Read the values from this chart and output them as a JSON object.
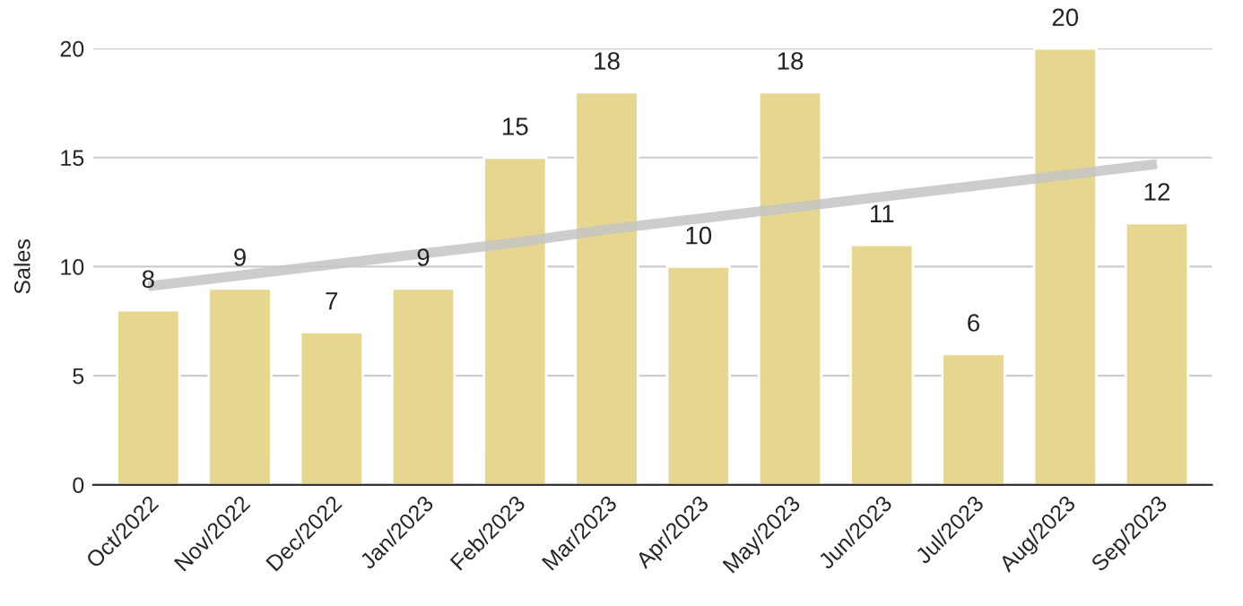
{
  "chart_data": {
    "type": "bar",
    "ylabel": "Sales",
    "categories": [
      "Oct/2022",
      "Nov/2022",
      "Dec/2022",
      "Jan/2023",
      "Feb/2023",
      "Mar/2023",
      "Apr/2023",
      "May/2023",
      "Jun/2023",
      "Jul/2023",
      "Aug/2023",
      "Sep/2023"
    ],
    "series": [
      {
        "color": "#e6d68f",
        "values": [
          8,
          9,
          7,
          9,
          15,
          18,
          10,
          18,
          11,
          6,
          20,
          12
        ],
        "value_labels": [
          "8",
          "9",
          "7",
          "9",
          "15",
          "18",
          "10",
          "18",
          "11",
          "6",
          "20",
          "12"
        ]
      },
      {
        "type": "line",
        "color": "#c4c4c4",
        "values": [
          9.1,
          9.6,
          10.1,
          10.6,
          11.1,
          11.7,
          12.2,
          12.7,
          13.2,
          13.7,
          14.2,
          14.7
        ]
      }
    ],
    "ylim": [
      0,
      20
    ],
    "yticks": [
      0,
      5,
      10,
      15,
      20
    ],
    "grid": "y",
    "legend": false
  }
}
